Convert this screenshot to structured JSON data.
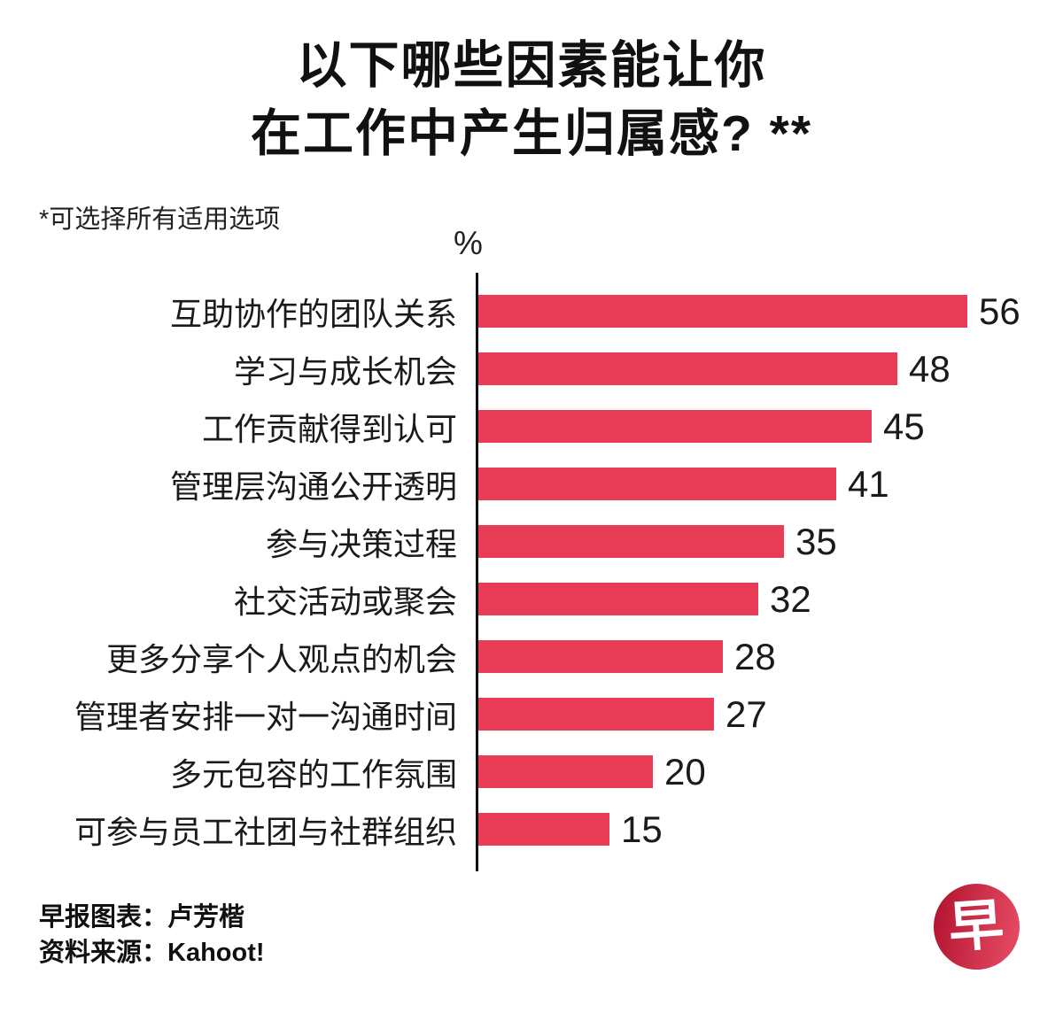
{
  "header": {
    "title_line1": "以下哪些因素能让你",
    "title_line2": "在工作中产生归属感? **",
    "footnote": "*可选择所有适用选项"
  },
  "chart_data": {
    "type": "bar",
    "orientation": "horizontal",
    "title": "以下哪些因素能让你在工作中产生归属感? **",
    "subtitle_note": "*可选择所有适用选项",
    "unit_label": "%",
    "xlabel": "%",
    "ylabel": "",
    "xlim": [
      0,
      60
    ],
    "grid": false,
    "legend": "none",
    "value_labels_shown": true,
    "bar_color": "#E73B56",
    "categories": [
      "互助协作的团队关系",
      "学习与成长机会",
      "工作贡献得到认可",
      "管理层沟通公开透明",
      "参与决策过程",
      "社交活动或聚会",
      "更多分享个人观点的机会",
      "管理者安排一对一沟通时间",
      "多元包容的工作氛围",
      "可参与员工社团与社群组织"
    ],
    "values": [
      56,
      48,
      45,
      41,
      35,
      32,
      28,
      27,
      20,
      15
    ]
  },
  "footer": {
    "credit": "早报图表：卢芳楷",
    "source": "资料来源：Kahoot!",
    "logo_glyph": "早",
    "logo_color_dark": "#B1122F",
    "logo_color_light": "#E84E66"
  }
}
